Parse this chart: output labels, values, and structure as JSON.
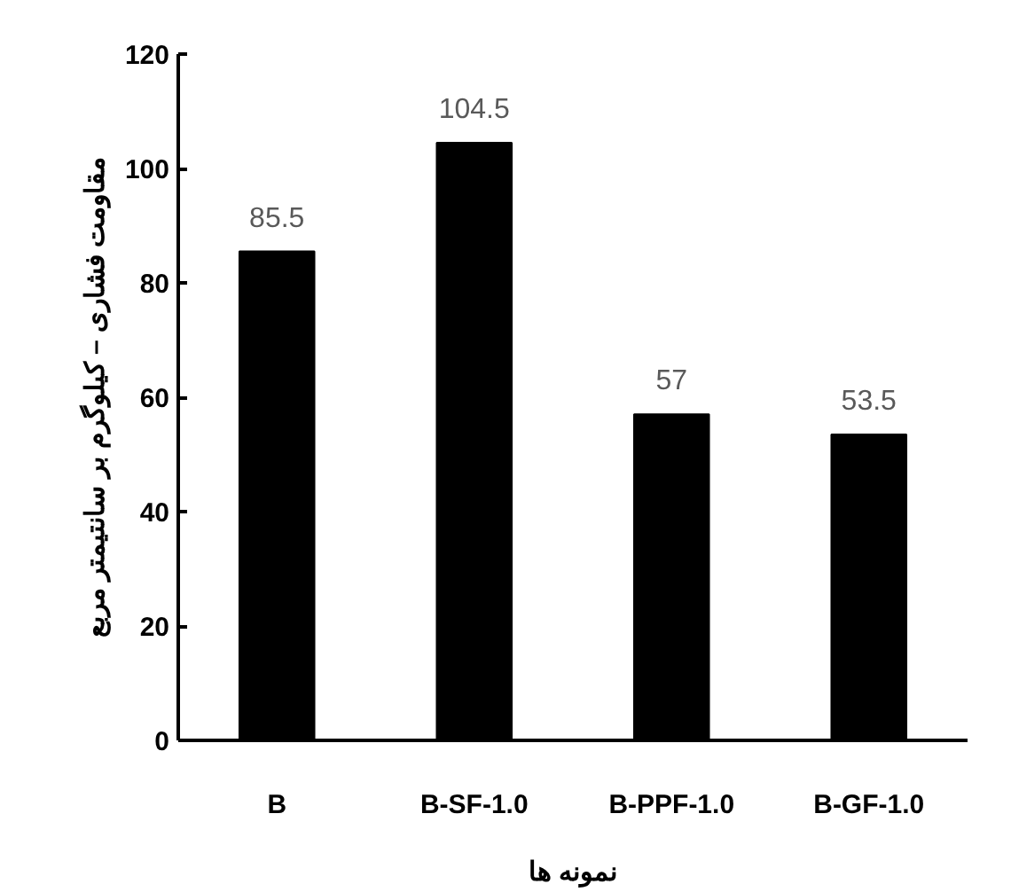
{
  "chart_data": {
    "type": "bar",
    "categories": [
      "B",
      "B-SF-1.0",
      "B-PPF-1.0",
      "B-GF-1.0"
    ],
    "values": [
      85.5,
      104.5,
      57,
      53.5
    ],
    "color": "#000000",
    "xlabel": "نمونه ها",
    "ylabel": "مقاومت فشاری – کیلوگرم بر سانتیمتر مربع",
    "ylim": [
      0,
      120
    ],
    "yticks": [
      0,
      20,
      40,
      60,
      80,
      100,
      120
    ],
    "data_labels": true
  }
}
